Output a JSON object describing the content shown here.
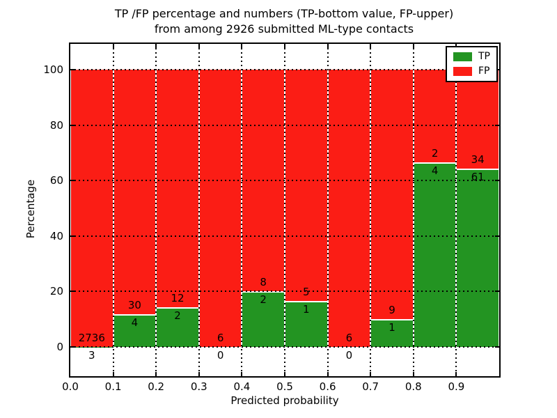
{
  "title": {
    "line1": "TP /FP percentage and numbers (TP-bottom value, FP-upper)",
    "line2": "from among 2926 submitted ML-type contacts"
  },
  "axes": {
    "xlabel": "Predicted probability",
    "ylabel": "Percentage"
  },
  "legend": {
    "items": [
      {
        "label": "TP",
        "color": "#239422"
      },
      {
        "label": "FP",
        "color": "#fb1d15"
      }
    ],
    "position": "upper right"
  },
  "colors": {
    "tp": "#239422",
    "fp": "#fb1d15",
    "background": "#ffffff",
    "frame": "#000000",
    "grid": "#000000",
    "text": "#000000"
  },
  "chart_data": {
    "type": "bar",
    "stacked": true,
    "normalized": "percent",
    "title": "TP /FP percentage and numbers (TP-bottom value, FP-upper) from among 2926 submitted ML-type contacts",
    "xlabel": "Predicted probability",
    "ylabel": "Percentage",
    "total_contacts": 2926,
    "bin_edges": [
      0.0,
      0.1,
      0.2,
      0.3,
      0.4,
      0.5,
      0.6,
      0.7,
      0.8,
      0.9,
      1.0
    ],
    "x_tick_labels": [
      "0.0",
      "0.1",
      "0.2",
      "0.3",
      "0.4",
      "0.5",
      "0.6",
      "0.7",
      "0.8",
      "0.9"
    ],
    "y_ticks": [
      0,
      20,
      40,
      60,
      80,
      100
    ],
    "ylim": [
      -10.5,
      109.5
    ],
    "grid": "dotted",
    "legend_position": "upper right",
    "series": [
      {
        "name": "TP",
        "color": "#239422",
        "counts": [
          3,
          4,
          2,
          0,
          2,
          1,
          0,
          1,
          4,
          61
        ]
      },
      {
        "name": "FP",
        "color": "#fb1d15",
        "counts": [
          2736,
          30,
          12,
          6,
          8,
          5,
          6,
          9,
          2,
          34
        ]
      }
    ],
    "tp_percent": [
      0.11,
      11.76,
      14.29,
      0.0,
      20.0,
      16.67,
      0.0,
      10.0,
      66.67,
      64.21
    ]
  }
}
